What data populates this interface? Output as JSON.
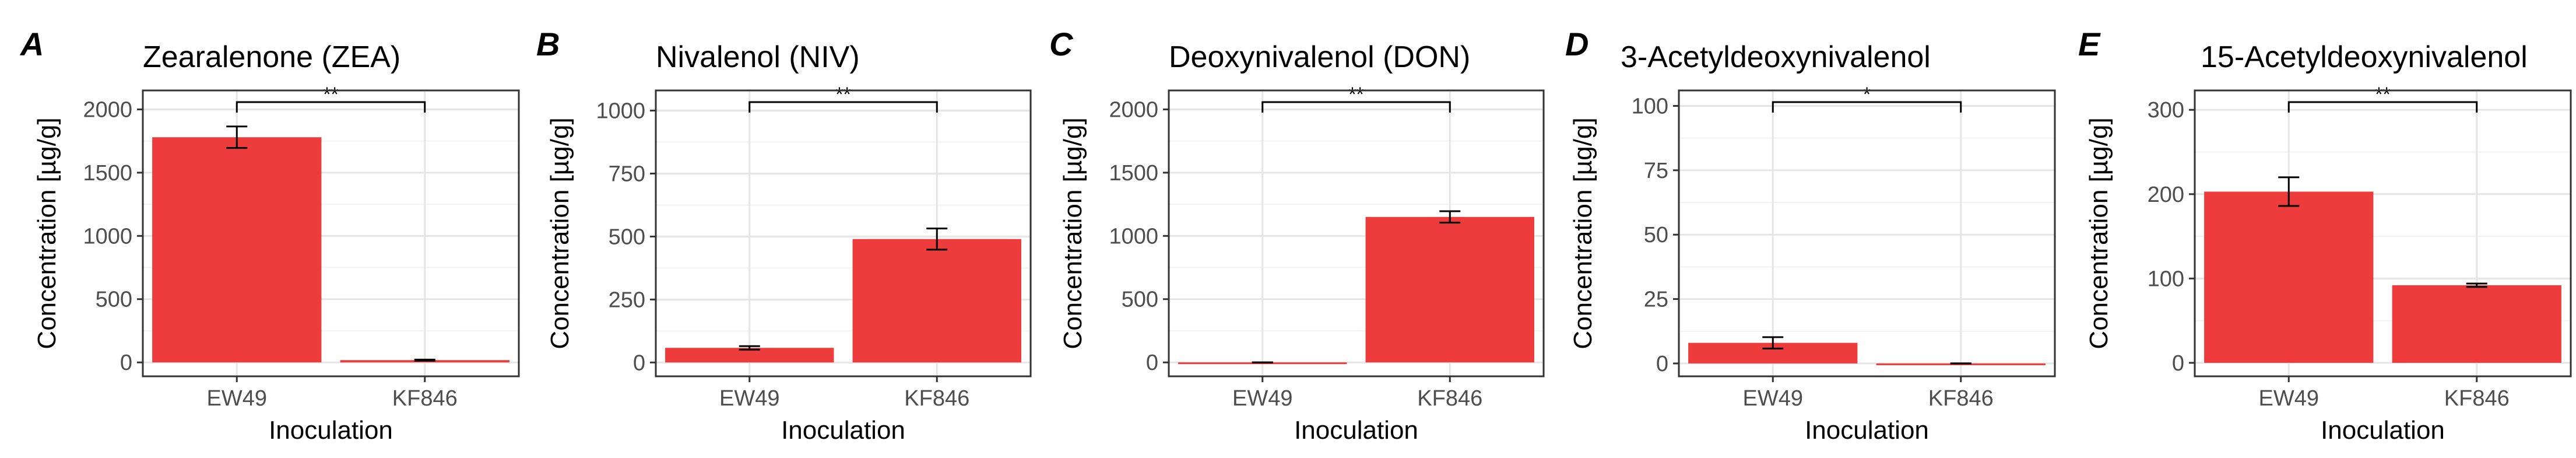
{
  "chart_data": [
    {
      "type": "bar",
      "letter": "A",
      "title": "Zearalenone (ZEA)",
      "xlabel": "Inoculation",
      "ylabel": "Concentration [µg/g]",
      "categories": [
        "EW49",
        "KF846"
      ],
      "values": [
        1780,
        18
      ],
      "errors": [
        85,
        4
      ],
      "ylim": [
        -110,
        2150
      ],
      "yticks": [
        0,
        500,
        1000,
        1500,
        2000
      ],
      "significance": "**",
      "bar_color": "#ee3b3b",
      "grid": true
    },
    {
      "type": "bar",
      "letter": "B",
      "title": "Nivalenol (NIV)",
      "xlabel": "Inoculation",
      "ylabel": "Concentration [µg/g]",
      "categories": [
        "EW49",
        "KF846"
      ],
      "values": [
        58,
        490
      ],
      "errors": [
        7,
        42
      ],
      "ylim": [
        -55,
        1080
      ],
      "yticks": [
        0,
        250,
        500,
        750,
        1000
      ],
      "significance": "**",
      "bar_color": "#ee3b3b",
      "grid": true
    },
    {
      "type": "bar",
      "letter": "C",
      "title": "Deoxynivalenol (DON)",
      "xlabel": "Inoculation",
      "ylabel": "Concentration [µg/g]",
      "categories": [
        "EW49",
        "KF846"
      ],
      "values": [
        0,
        1150
      ],
      "errors": [
        0,
        45
      ],
      "ylim": [
        -110,
        2150
      ],
      "yticks": [
        0,
        500,
        1000,
        1500,
        2000
      ],
      "significance": "**",
      "bar_color": "#ee3b3b",
      "grid": true
    },
    {
      "type": "bar",
      "letter": "D",
      "title": "3-Acetyldeoxynivalenol",
      "xlabel": "Inoculation",
      "ylabel": "Concentration [µg/g]",
      "categories": [
        "EW49",
        "KF846"
      ],
      "values": [
        8,
        0
      ],
      "errors": [
        2.2,
        0
      ],
      "ylim": [
        -5,
        106
      ],
      "yticks": [
        0,
        25,
        50,
        75,
        100
      ],
      "significance": "*",
      "bar_color": "#ee3b3b",
      "grid": true
    },
    {
      "type": "bar",
      "letter": "E",
      "title": "15-Acetyldeoxynivalenol",
      "xlabel": "Inoculation",
      "ylabel": "Concentration [µg/g]",
      "categories": [
        "EW49",
        "KF846"
      ],
      "values": [
        203,
        92
      ],
      "errors": [
        17,
        2
      ],
      "ylim": [
        -16,
        323
      ],
      "yticks": [
        0,
        100,
        200,
        300
      ],
      "significance": "**",
      "bar_color": "#ee3b3b",
      "grid": true
    }
  ]
}
